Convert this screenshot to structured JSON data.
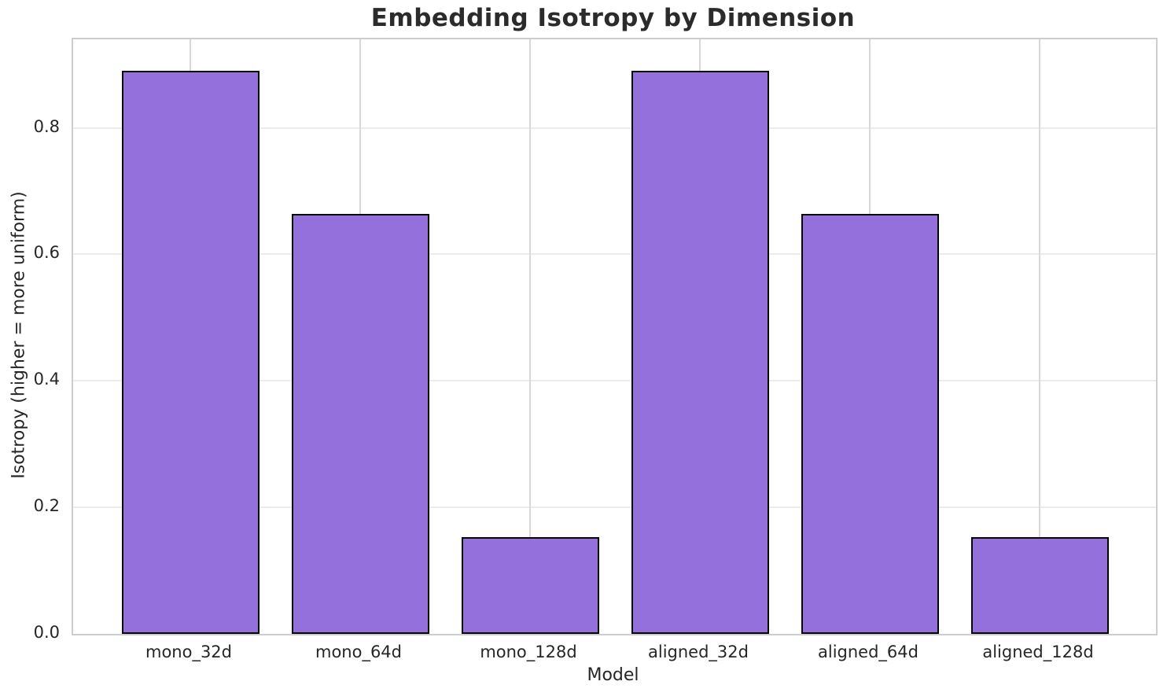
{
  "chart_data": {
    "type": "bar",
    "title": "Embedding Isotropy by Dimension",
    "xlabel": "Model",
    "ylabel": "Isotropy (higher = more uniform)",
    "categories": [
      "mono_32d",
      "mono_64d",
      "mono_128d",
      "aligned_32d",
      "aligned_64d",
      "aligned_128d"
    ],
    "values": [
      0.89,
      0.664,
      0.153,
      0.89,
      0.664,
      0.153
    ],
    "yticks": [
      0.0,
      0.2,
      0.4,
      0.6,
      0.8
    ],
    "ytick_labels": [
      "0.0",
      "0.2",
      "0.4",
      "0.6",
      "0.8"
    ],
    "ylim": [
      0,
      0.94
    ],
    "grid": true,
    "legend": false,
    "colors": {
      "bar_fill": "#9370DB",
      "bar_edge": "#000000",
      "grid_horizontal": "#ececec",
      "grid_vertical": "#d8d8d8",
      "spine": "#cdcdcd",
      "text": "#262626",
      "title_text": "#2b2b2b"
    }
  }
}
